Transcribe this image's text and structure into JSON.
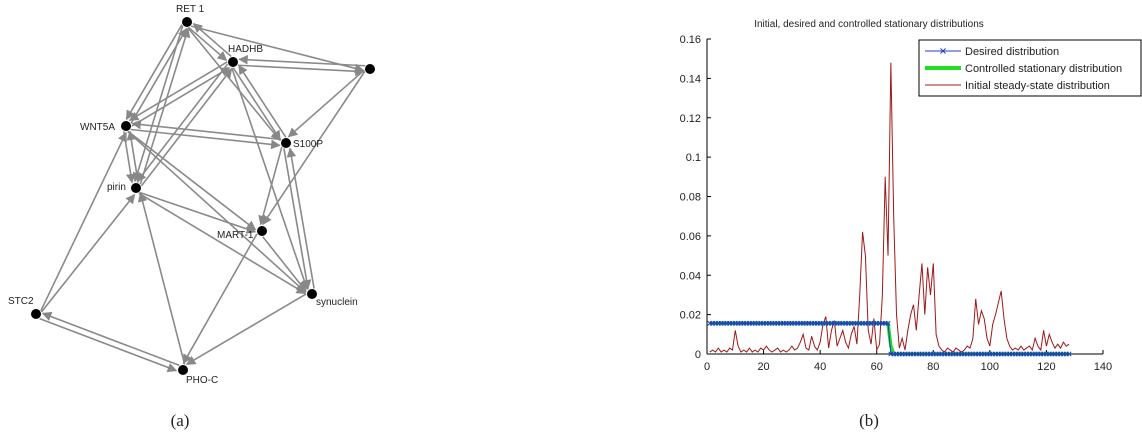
{
  "captions": {
    "left": "(a)",
    "right": "(b)"
  },
  "network": {
    "nodes": [
      {
        "id": "RET1",
        "label": "RET 1"
      },
      {
        "id": "HADHB",
        "label": "HADHB"
      },
      {
        "id": "UNLABELED",
        "label": ""
      },
      {
        "id": "WNT5A",
        "label": "WNT5A"
      },
      {
        "id": "S100P",
        "label": "S100P"
      },
      {
        "id": "PIRIN",
        "label": "pirin"
      },
      {
        "id": "MART1",
        "label": "MART-1"
      },
      {
        "id": "SYNUCLEIN",
        "label": "synuclein"
      },
      {
        "id": "STC2",
        "label": "STC2"
      },
      {
        "id": "PHOC",
        "label": "PHO-C"
      }
    ],
    "edges": [
      [
        "RET1",
        "HADHB"
      ],
      [
        "HADHB",
        "RET1"
      ],
      [
        "RET1",
        "UNLABELED"
      ],
      [
        "UNLABELED",
        "HADHB"
      ],
      [
        "HADHB",
        "UNLABELED"
      ],
      [
        "RET1",
        "WNT5A"
      ],
      [
        "WNT5A",
        "RET1"
      ],
      [
        "RET1",
        "PIRIN"
      ],
      [
        "PIRIN",
        "RET1"
      ],
      [
        "RET1",
        "S100P"
      ],
      [
        "HADHB",
        "WNT5A"
      ],
      [
        "WNT5A",
        "HADHB"
      ],
      [
        "HADHB",
        "PIRIN"
      ],
      [
        "PIRIN",
        "HADHB"
      ],
      [
        "HADHB",
        "S100P"
      ],
      [
        "S100P",
        "HADHB"
      ],
      [
        "WNT5A",
        "S100P"
      ],
      [
        "S100P",
        "WNT5A"
      ],
      [
        "WNT5A",
        "PIRIN"
      ],
      [
        "PIRIN",
        "WNT5A"
      ],
      [
        "WNT5A",
        "MART1"
      ],
      [
        "WNT5A",
        "SYNUCLEIN"
      ],
      [
        "PIRIN",
        "MART1"
      ],
      [
        "PIRIN",
        "SYNUCLEIN"
      ],
      [
        "UNLABELED",
        "S100P"
      ],
      [
        "UNLABELED",
        "MART1"
      ],
      [
        "S100P",
        "MART1"
      ],
      [
        "S100P",
        "SYNUCLEIN"
      ],
      [
        "SYNUCLEIN",
        "S100P"
      ],
      [
        "MART1",
        "SYNUCLEIN"
      ],
      [
        "STC2",
        "WNT5A"
      ],
      [
        "STC2",
        "PIRIN"
      ],
      [
        "STC2",
        "PHOC"
      ],
      [
        "PHOC",
        "STC2"
      ],
      [
        "MART1",
        "PHOC"
      ],
      [
        "SYNUCLEIN",
        "PHOC"
      ],
      [
        "PHOC",
        "PIRIN"
      ],
      [
        "HADHB",
        "SYNUCLEIN"
      ]
    ]
  },
  "chart_data": {
    "type": "line",
    "title": "Initial, desired and controlled stationary distributions",
    "xlabel": "",
    "ylabel": "",
    "xlim": [
      0,
      140
    ],
    "ylim": [
      0,
      0.16
    ],
    "xticks": [
      "0",
      "20",
      "40",
      "60",
      "80",
      "100",
      "120",
      "140"
    ],
    "yticks": [
      "0",
      "0.02",
      "0.04",
      "0.06",
      "0.08",
      "0.1",
      "0.12",
      "0.14",
      "0.16"
    ],
    "legend_position": "top-right",
    "colors": {
      "desired": "#1f3fbf",
      "controlled": "#22dd22",
      "initial": "#a01818"
    },
    "series": [
      {
        "name": "Desired distribution",
        "x": [
          1,
          64,
          64,
          65,
          128
        ],
        "y": [
          0.0156,
          0.0156,
          0.0156,
          0,
          0
        ]
      },
      {
        "name": "Controlled stationary distribution",
        "x": [
          1,
          63,
          64,
          65,
          66,
          128
        ],
        "y": [
          0.0156,
          0.0156,
          0.0155,
          0.004,
          0,
          0
        ]
      },
      {
        "name": "Initial steady-state distribution",
        "x": [
          1,
          2,
          3,
          4,
          5,
          6,
          7,
          8,
          9,
          10,
          11,
          12,
          13,
          14,
          15,
          16,
          17,
          18,
          19,
          20,
          21,
          22,
          23,
          24,
          25,
          26,
          27,
          28,
          29,
          30,
          31,
          32,
          33,
          34,
          35,
          36,
          37,
          38,
          39,
          40,
          41,
          42,
          43,
          44,
          45,
          46,
          47,
          48,
          49,
          50,
          51,
          52,
          53,
          54,
          55,
          56,
          57,
          58,
          59,
          60,
          61,
          62,
          63,
          64,
          65,
          66,
          67,
          68,
          69,
          70,
          71,
          72,
          73,
          74,
          75,
          76,
          77,
          78,
          79,
          80,
          81,
          82,
          83,
          84,
          85,
          86,
          87,
          88,
          89,
          90,
          91,
          92,
          93,
          94,
          95,
          96,
          97,
          98,
          99,
          100,
          101,
          102,
          103,
          104,
          105,
          106,
          107,
          108,
          109,
          110,
          111,
          112,
          113,
          114,
          115,
          116,
          117,
          118,
          119,
          120,
          121,
          122,
          123,
          124,
          125,
          126,
          127,
          128
        ],
        "y": [
          0.001,
          0.002,
          0.001,
          0.003,
          0.001,
          0.002,
          0.001,
          0.003,
          0.002,
          0.012,
          0.004,
          0.001,
          0.002,
          0.001,
          0.003,
          0.001,
          0.002,
          0.001,
          0.003,
          0.002,
          0.004,
          0.002,
          0.001,
          0.002,
          0.003,
          0.001,
          0.002,
          0.001,
          0.002,
          0.004,
          0.002,
          0.003,
          0.006,
          0.01,
          0.003,
          0.002,
          0.009,
          0.004,
          0.002,
          0.006,
          0.015,
          0.019,
          0.003,
          0.012,
          0.017,
          0.004,
          0.008,
          0.012,
          0.006,
          0.003,
          0.01,
          0.014,
          0.005,
          0.03,
          0.062,
          0.05,
          0.012,
          0.005,
          0.018,
          0.002,
          0.005,
          0.03,
          0.09,
          0.05,
          0.148,
          0.07,
          0.02,
          0.003,
          0.008,
          0.002,
          0.012,
          0.02,
          0.025,
          0.012,
          0.03,
          0.046,
          0.02,
          0.044,
          0.03,
          0.046,
          0.01,
          0.004,
          0.002,
          0.001,
          0.003,
          0.002,
          0.001,
          0.003,
          0.002,
          0.001,
          0.002,
          0.004,
          0.003,
          0.008,
          0.028,
          0.015,
          0.022,
          0.018,
          0.008,
          0.004,
          0.015,
          0.02,
          0.026,
          0.032,
          0.018,
          0.008,
          0.004,
          0.002,
          0.003,
          0.002,
          0.004,
          0.002,
          0.003,
          0.004,
          0.002,
          0.008,
          0.004,
          0.002,
          0.012,
          0.004,
          0.01,
          0.006,
          0.003,
          0.005,
          0.003,
          0.006,
          0.004,
          0.005
        ]
      }
    ]
  }
}
